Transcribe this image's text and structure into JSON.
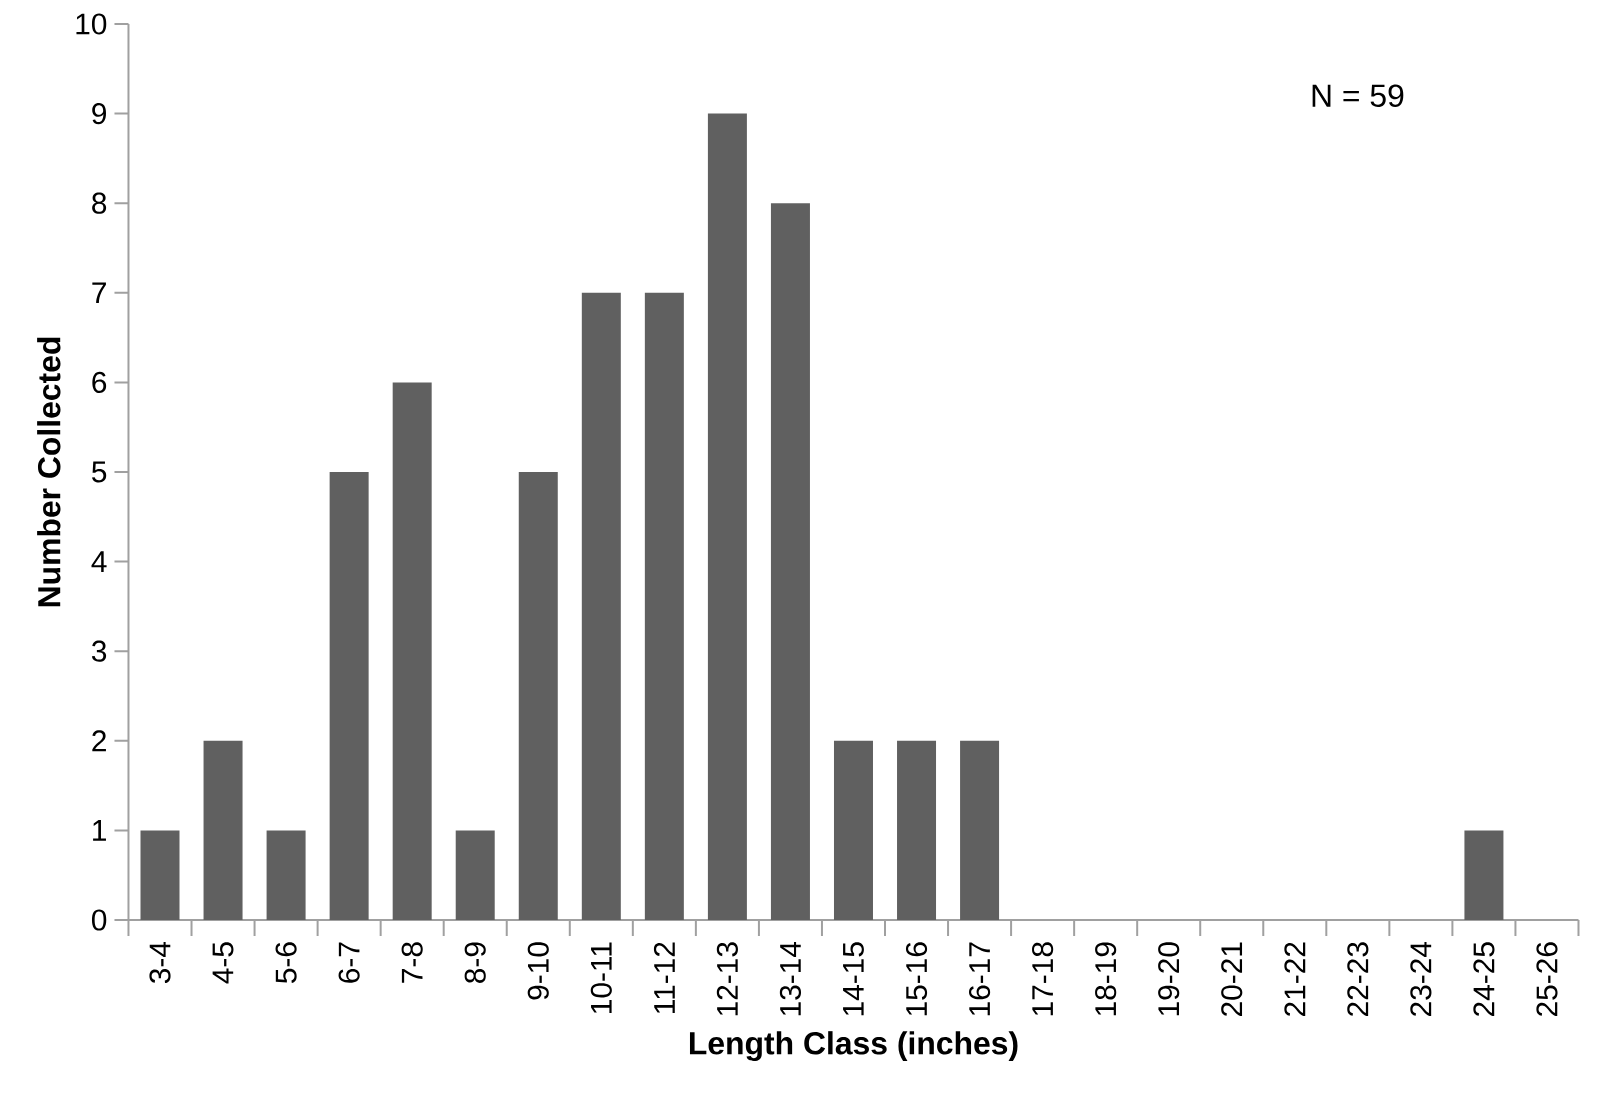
{
  "chart_data": {
    "type": "bar",
    "xlabel": "Length Class (inches)",
    "ylabel": "Number Collected",
    "categories": [
      "3-4",
      "4-5",
      "5-6",
      "6-7",
      "7-8",
      "8-9",
      "9-10",
      "10-11",
      "11-12",
      "12-13",
      "13-14",
      "14-15",
      "15-16",
      "16-17",
      "17-18",
      "18-19",
      "19-20",
      "20-21",
      "21-22",
      "22-23",
      "23-24",
      "24-25",
      "25-26"
    ],
    "values": [
      1,
      2,
      1,
      5,
      6,
      1,
      5,
      7,
      7,
      9,
      8,
      2,
      2,
      2,
      0,
      0,
      0,
      0,
      0,
      0,
      0,
      1,
      0
    ],
    "color": "#606060",
    "ylim": [
      0,
      10
    ],
    "yticks": [
      0,
      1,
      2,
      3,
      4,
      5,
      6,
      7,
      8,
      9,
      10
    ],
    "annotations": [
      "N = 59"
    ]
  }
}
